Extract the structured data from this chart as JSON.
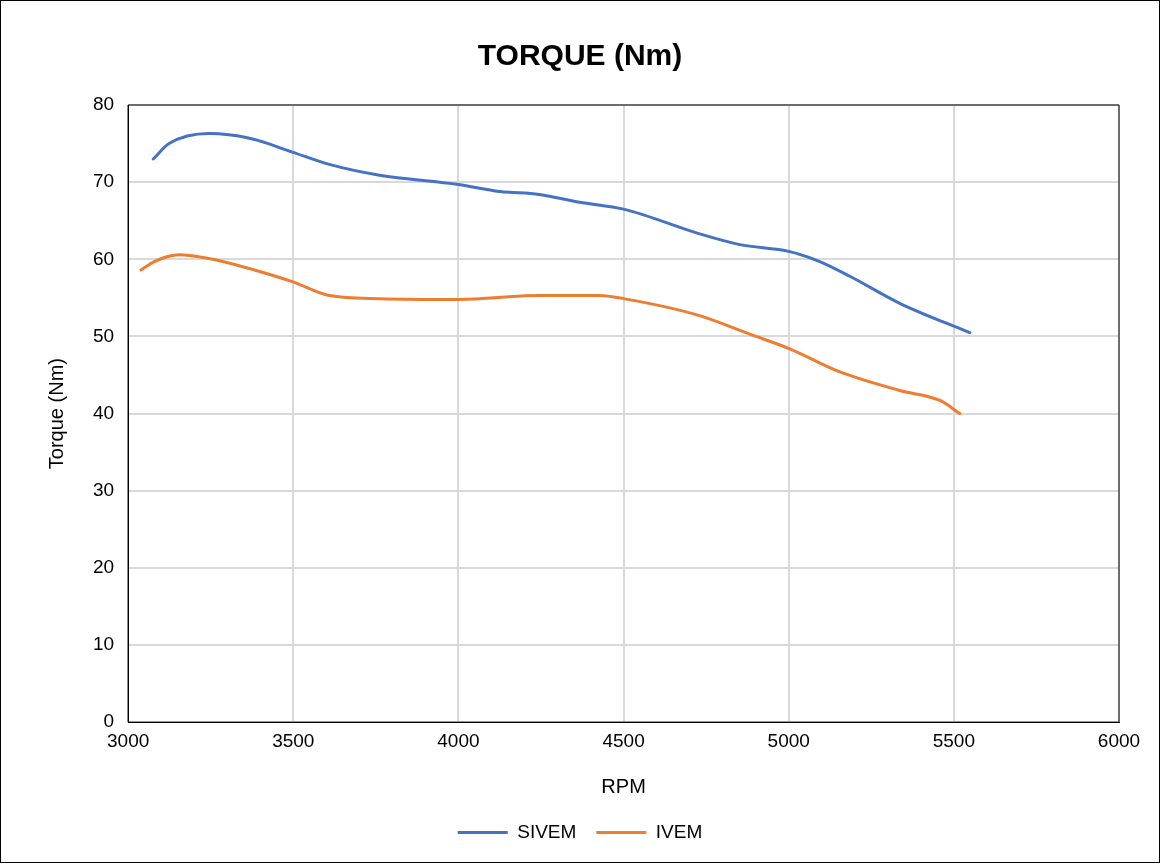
{
  "chart_data": {
    "type": "line",
    "title": "TORQUE (Nm)",
    "xlabel": "RPM",
    "ylabel": "Torque (Nm)",
    "xlim": [
      3000,
      6000
    ],
    "xticks": [
      3000,
      3500,
      4000,
      4500,
      5000,
      5500,
      6000
    ],
    "ylim": [
      0,
      80
    ],
    "yticks": [
      0,
      10,
      20,
      30,
      40,
      50,
      60,
      70,
      80
    ],
    "grid": true,
    "legend": "bottom",
    "marker": "none",
    "line_style": "solid",
    "series": [
      {
        "name": "SIVEM",
        "color": "#4472c4",
        "x": [
          3076,
          3124,
          3245,
          3367,
          3497,
          3609,
          3761,
          4000,
          4124,
          4245,
          4367,
          4500,
          4730,
          4852,
          5003,
          5094,
          5185,
          5336,
          5548
        ],
        "values": [
          73.0,
          75.0,
          76.3,
          75.7,
          73.9,
          72.3,
          70.9,
          69.7,
          68.8,
          68.4,
          67.4,
          66.5,
          63.3,
          61.9,
          61.0,
          59.7,
          57.8,
          54.3,
          50.5
        ]
      },
      {
        "name": "IVEM",
        "color": "#ed7d31",
        "x": [
          3039,
          3079,
          3155,
          3245,
          3367,
          3497,
          3609,
          3761,
          4000,
          4245,
          4427,
          4500,
          4730,
          4882,
          5003,
          5155,
          5336,
          5458,
          5518
        ],
        "values": [
          58.6,
          59.7,
          60.6,
          60.1,
          58.8,
          57.1,
          55.3,
          54.9,
          54.8,
          55.3,
          55.3,
          54.9,
          52.7,
          50.3,
          48.4,
          45.4,
          43.0,
          41.7,
          40.0
        ]
      }
    ]
  }
}
